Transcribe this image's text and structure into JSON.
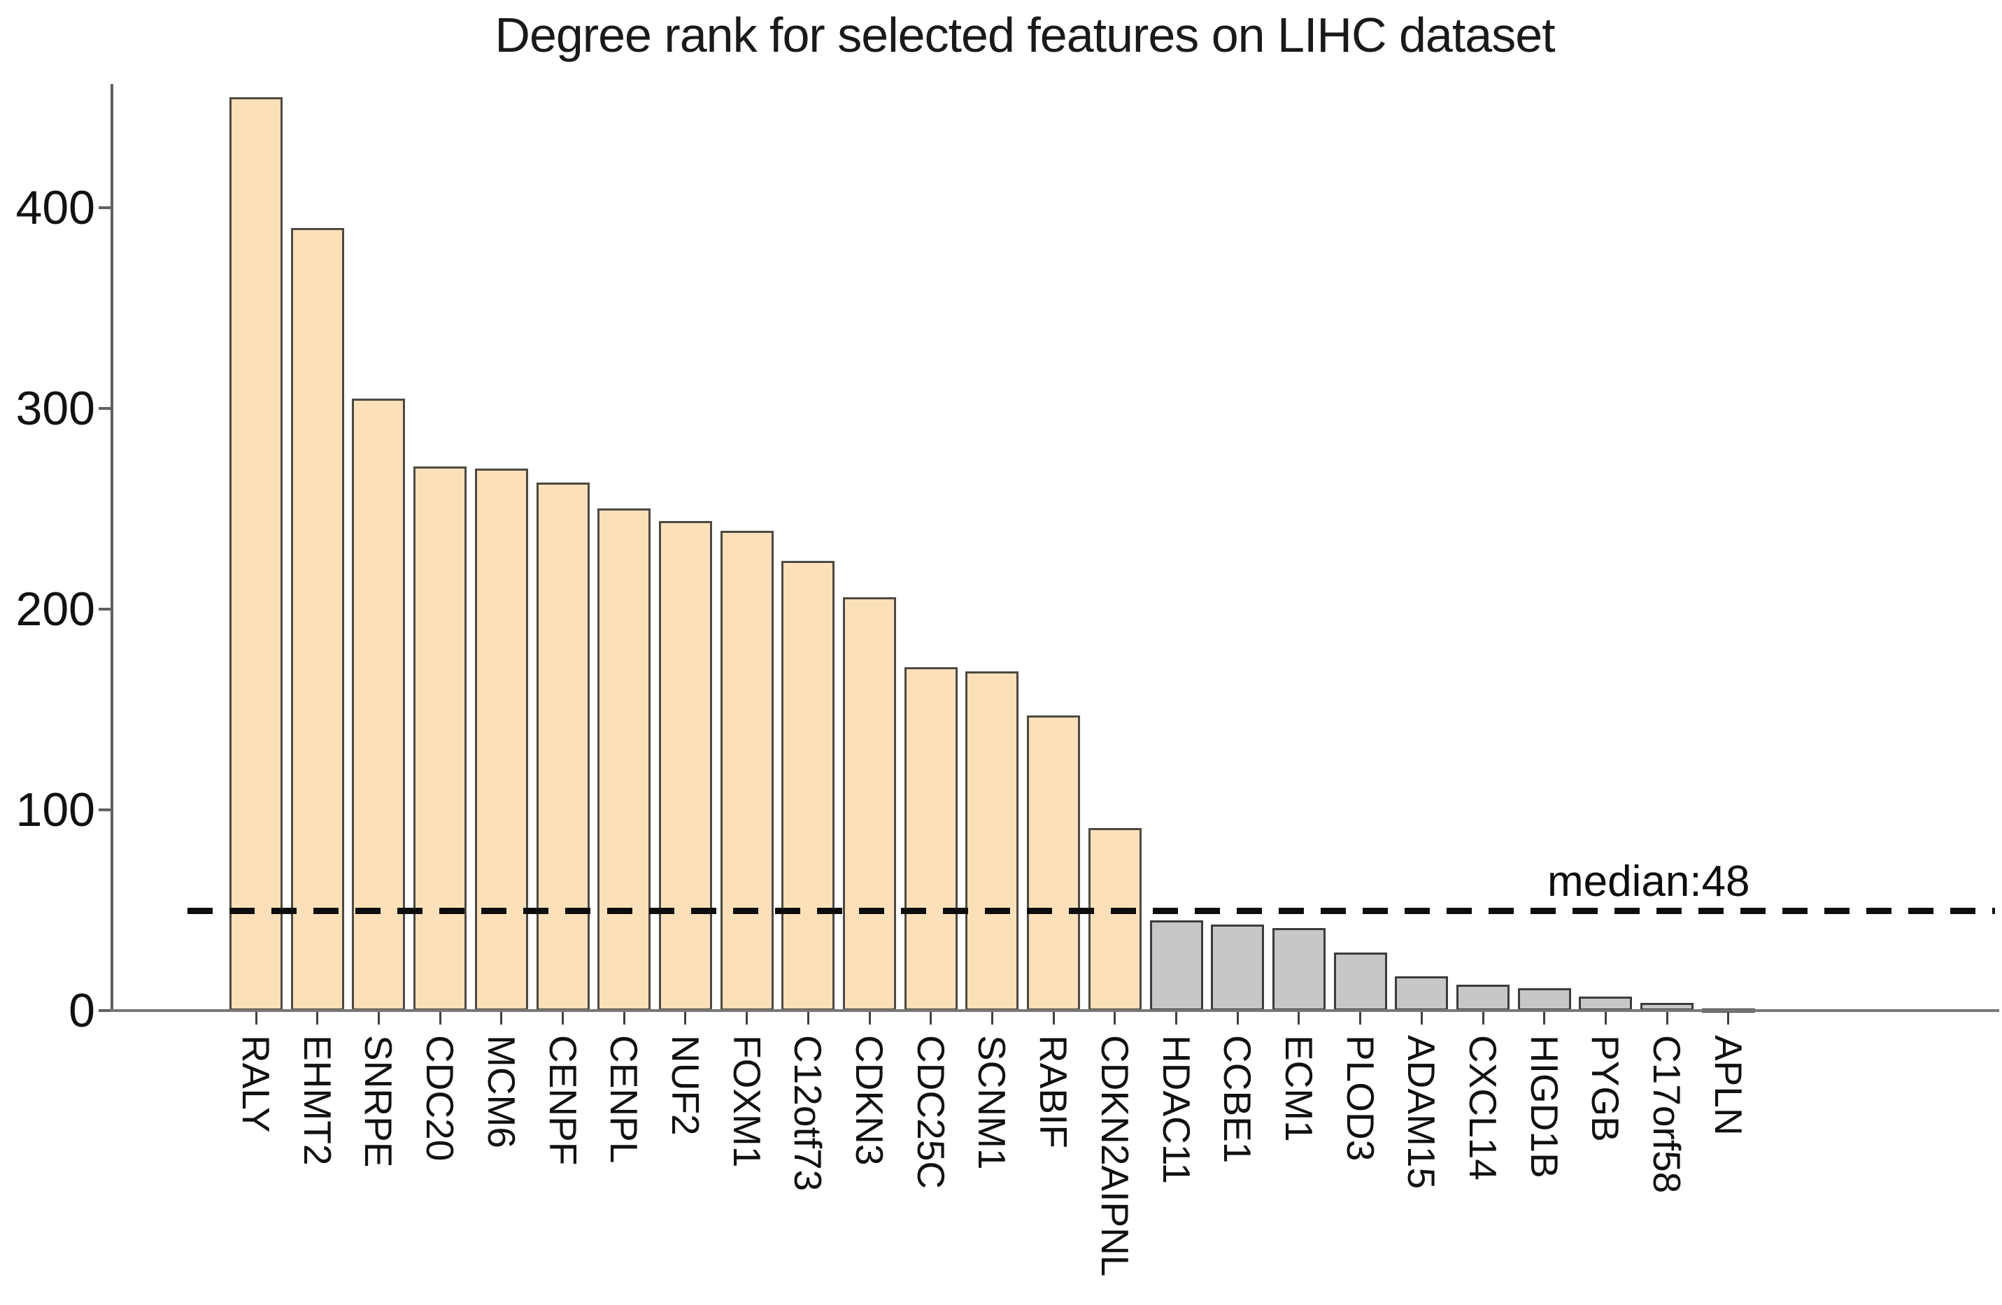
{
  "title": "Degree rank for selected features on LIHC dataset",
  "chart_data": {
    "type": "bar",
    "title": "Degree rank for selected features on LIHC dataset",
    "xlabel": "",
    "ylabel": "",
    "grid": false,
    "legend": "none",
    "categories": [
      "RALY",
      "EHMT2",
      "SNRPE",
      "CDC20",
      "MCM6",
      "CENPF",
      "CENPL",
      "NUF2",
      "FOXM1",
      "C12otf73",
      "CDKN3",
      "CDC25C",
      "SCNM1",
      "RABIF",
      "CDKN2AIPNL",
      "HDAC11",
      "CCBE1",
      "ECM1",
      "PLOD3",
      "ADAM15",
      "CXCL14",
      "HIGD1B",
      "PYGB",
      "C17orf58",
      "APLN"
    ],
    "values": [
      455,
      390,
      305,
      271,
      270,
      263,
      250,
      244,
      239,
      224,
      206,
      171,
      169,
      147,
      91,
      45,
      43,
      41,
      29,
      17,
      13,
      11,
      7,
      4,
      1
    ],
    "yticks": [
      0,
      100,
      200,
      300,
      400
    ],
    "ylim": [
      0,
      461
    ],
    "median_line": {
      "value": 48,
      "label": "median:48",
      "style": "dashed-black"
    },
    "groups": [
      {
        "name": "above-median",
        "bar_color": "#fbe0ba",
        "border_color": "#4d4a42",
        "first_index": 0,
        "count": 15
      },
      {
        "name": "below-median",
        "bar_color": "#c7c7c7",
        "border_color": "#3c3c3c",
        "first_index": 15,
        "count": 10
      }
    ]
  },
  "colors": {
    "background": "#ffffff",
    "axis": "#606060",
    "baseline": "#787878",
    "text": "#111111",
    "median": "#0d0d0d"
  }
}
